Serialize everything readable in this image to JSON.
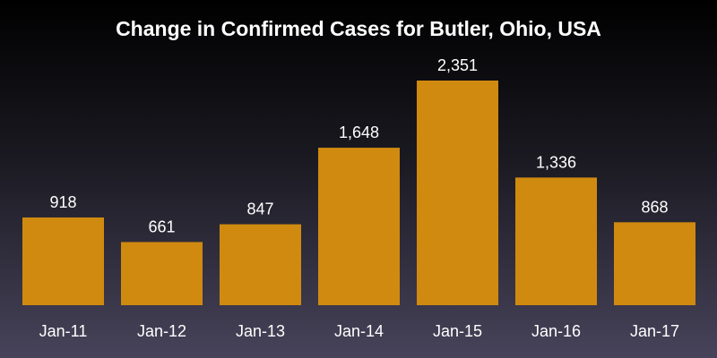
{
  "chart_data": {
    "type": "bar",
    "title": "Change in Confirmed Cases for Butler, Ohio, USA",
    "categories": [
      "Jan-11",
      "Jan-12",
      "Jan-13",
      "Jan-14",
      "Jan-15",
      "Jan-16",
      "Jan-17"
    ],
    "values": [
      918,
      661,
      847,
      1648,
      2351,
      1336,
      868
    ],
    "value_labels": [
      "918",
      "661",
      "847",
      "1,648",
      "2,351",
      "1,336",
      "868"
    ],
    "xlabel": "",
    "ylabel": "",
    "ylim": [
      0,
      2351
    ],
    "grid": false,
    "legend": "none",
    "colors": {
      "bar": "#d08a10",
      "text": "#ffffff"
    }
  }
}
